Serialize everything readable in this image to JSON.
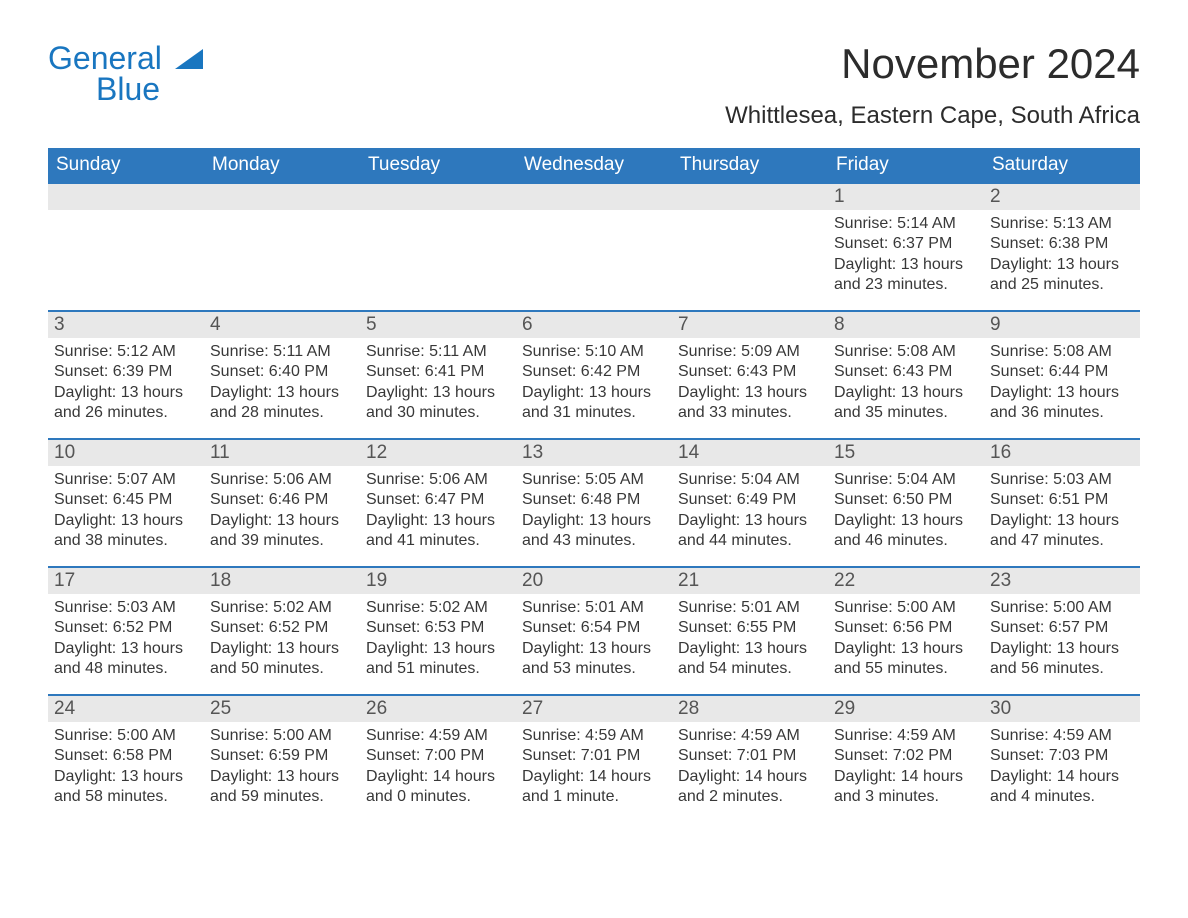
{
  "brand": {
    "name_main": "General",
    "name_sub": "Blue",
    "color": "#1976c0"
  },
  "title": "November 2024",
  "location": "Whittlesea, Eastern Cape, South Africa",
  "colors": {
    "header_bg": "#2e78bd",
    "header_text": "#ffffff",
    "row_separator": "#2e78bd",
    "daynum_bg": "#e8e8e8",
    "body_text": "#383838",
    "page_bg": "#ffffff"
  },
  "font": {
    "family": "Arial",
    "title_size_pt": 42,
    "location_size_pt": 24,
    "dayhdr_size_pt": 19,
    "body_size_pt": 16
  },
  "weekdays": [
    "Sunday",
    "Monday",
    "Tuesday",
    "Wednesday",
    "Thursday",
    "Friday",
    "Saturday"
  ],
  "weeks": [
    [
      {
        "day": null
      },
      {
        "day": null
      },
      {
        "day": null
      },
      {
        "day": null
      },
      {
        "day": null
      },
      {
        "day": 1,
        "sunrise": "5:14 AM",
        "sunset": "6:37 PM",
        "daylight": "13 hours and 23 minutes."
      },
      {
        "day": 2,
        "sunrise": "5:13 AM",
        "sunset": "6:38 PM",
        "daylight": "13 hours and 25 minutes."
      }
    ],
    [
      {
        "day": 3,
        "sunrise": "5:12 AM",
        "sunset": "6:39 PM",
        "daylight": "13 hours and 26 minutes."
      },
      {
        "day": 4,
        "sunrise": "5:11 AM",
        "sunset": "6:40 PM",
        "daylight": "13 hours and 28 minutes."
      },
      {
        "day": 5,
        "sunrise": "5:11 AM",
        "sunset": "6:41 PM",
        "daylight": "13 hours and 30 minutes."
      },
      {
        "day": 6,
        "sunrise": "5:10 AM",
        "sunset": "6:42 PM",
        "daylight": "13 hours and 31 minutes."
      },
      {
        "day": 7,
        "sunrise": "5:09 AM",
        "sunset": "6:43 PM",
        "daylight": "13 hours and 33 minutes."
      },
      {
        "day": 8,
        "sunrise": "5:08 AM",
        "sunset": "6:43 PM",
        "daylight": "13 hours and 35 minutes."
      },
      {
        "day": 9,
        "sunrise": "5:08 AM",
        "sunset": "6:44 PM",
        "daylight": "13 hours and 36 minutes."
      }
    ],
    [
      {
        "day": 10,
        "sunrise": "5:07 AM",
        "sunset": "6:45 PM",
        "daylight": "13 hours and 38 minutes."
      },
      {
        "day": 11,
        "sunrise": "5:06 AM",
        "sunset": "6:46 PM",
        "daylight": "13 hours and 39 minutes."
      },
      {
        "day": 12,
        "sunrise": "5:06 AM",
        "sunset": "6:47 PM",
        "daylight": "13 hours and 41 minutes."
      },
      {
        "day": 13,
        "sunrise": "5:05 AM",
        "sunset": "6:48 PM",
        "daylight": "13 hours and 43 minutes."
      },
      {
        "day": 14,
        "sunrise": "5:04 AM",
        "sunset": "6:49 PM",
        "daylight": "13 hours and 44 minutes."
      },
      {
        "day": 15,
        "sunrise": "5:04 AM",
        "sunset": "6:50 PM",
        "daylight": "13 hours and 46 minutes."
      },
      {
        "day": 16,
        "sunrise": "5:03 AM",
        "sunset": "6:51 PM",
        "daylight": "13 hours and 47 minutes."
      }
    ],
    [
      {
        "day": 17,
        "sunrise": "5:03 AM",
        "sunset": "6:52 PM",
        "daylight": "13 hours and 48 minutes."
      },
      {
        "day": 18,
        "sunrise": "5:02 AM",
        "sunset": "6:52 PM",
        "daylight": "13 hours and 50 minutes."
      },
      {
        "day": 19,
        "sunrise": "5:02 AM",
        "sunset": "6:53 PM",
        "daylight": "13 hours and 51 minutes."
      },
      {
        "day": 20,
        "sunrise": "5:01 AM",
        "sunset": "6:54 PM",
        "daylight": "13 hours and 53 minutes."
      },
      {
        "day": 21,
        "sunrise": "5:01 AM",
        "sunset": "6:55 PM",
        "daylight": "13 hours and 54 minutes."
      },
      {
        "day": 22,
        "sunrise": "5:00 AM",
        "sunset": "6:56 PM",
        "daylight": "13 hours and 55 minutes."
      },
      {
        "day": 23,
        "sunrise": "5:00 AM",
        "sunset": "6:57 PM",
        "daylight": "13 hours and 56 minutes."
      }
    ],
    [
      {
        "day": 24,
        "sunrise": "5:00 AM",
        "sunset": "6:58 PM",
        "daylight": "13 hours and 58 minutes."
      },
      {
        "day": 25,
        "sunrise": "5:00 AM",
        "sunset": "6:59 PM",
        "daylight": "13 hours and 59 minutes."
      },
      {
        "day": 26,
        "sunrise": "4:59 AM",
        "sunset": "7:00 PM",
        "daylight": "14 hours and 0 minutes."
      },
      {
        "day": 27,
        "sunrise": "4:59 AM",
        "sunset": "7:01 PM",
        "daylight": "14 hours and 1 minute."
      },
      {
        "day": 28,
        "sunrise": "4:59 AM",
        "sunset": "7:01 PM",
        "daylight": "14 hours and 2 minutes."
      },
      {
        "day": 29,
        "sunrise": "4:59 AM",
        "sunset": "7:02 PM",
        "daylight": "14 hours and 3 minutes."
      },
      {
        "day": 30,
        "sunrise": "4:59 AM",
        "sunset": "7:03 PM",
        "daylight": "14 hours and 4 minutes."
      }
    ]
  ],
  "labels": {
    "sunrise": "Sunrise:",
    "sunset": "Sunset:",
    "daylight": "Daylight:"
  }
}
